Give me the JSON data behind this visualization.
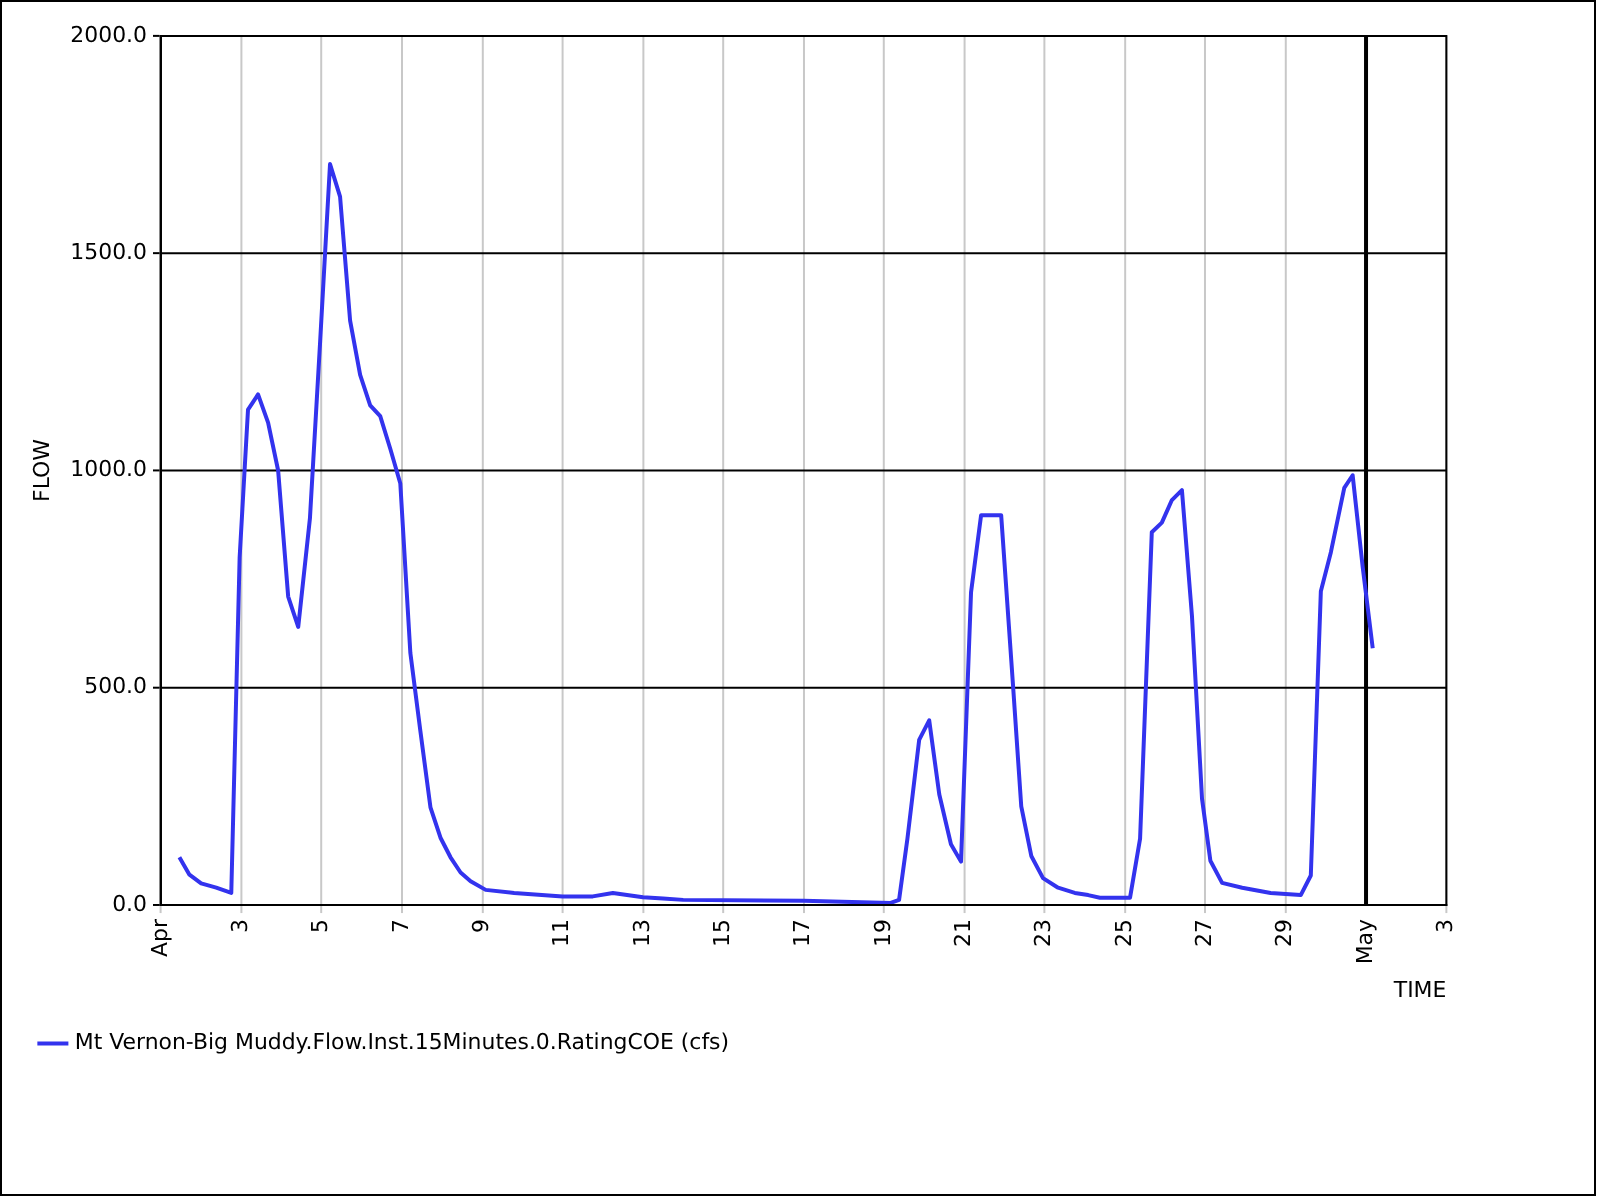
{
  "chart_data": {
    "type": "line",
    "xlabel": "TIME",
    "ylabel": "FLOW",
    "x": [
      "--04-01T11:00",
      "--04-01T17:00",
      "--04-02T00:00",
      "--04-02T09:00",
      "--04-02T18:00",
      "--04-02T23:00",
      "--04-03T04:00",
      "--04-03T10:00",
      "--04-03T16:00",
      "--04-03T22:00",
      "--04-04T04:00",
      "--04-04T10:00",
      "--04-04T17:00",
      "--04-04T23:00",
      "--04-05T05:00",
      "--04-05T11:00",
      "--04-05T17:00",
      "--04-05T23:00",
      "--04-06T05:00",
      "--04-06T11:00",
      "--04-06T17:00",
      "--04-06T23:00",
      "--04-07T05:00",
      "--04-07T11:00",
      "--04-07T17:00",
      "--04-07T23:00",
      "--04-08T05:00",
      "--04-08T11:00",
      "--04-08T17:00",
      "--04-09T02:00",
      "--04-09T19:00",
      "--04-11T00:00",
      "--04-11T18:00",
      "--04-12T06:00",
      "--04-13T00:00",
      "--04-13T12:00",
      "--04-14T00:00",
      "--04-17T00:00",
      "--04-19T04:00",
      "--04-19T09:00",
      "--04-19T14:00",
      "--04-19T21:00",
      "--04-20T03:00",
      "--04-20T09:00",
      "--04-20T16:00",
      "--04-20T22:00",
      "--04-21T04:00",
      "--04-21T10:00",
      "--04-21T22:00",
      "--04-22T05:00",
      "--04-22T10:00",
      "--04-22T16:00",
      "--04-22T23:00",
      "--04-23T08:00",
      "--04-23T18:00",
      "--04-24T02:00",
      "--04-24T09:00",
      "--04-25T03:00",
      "--04-25T09:00",
      "--04-25T16:00",
      "--04-25T22:00",
      "--04-26T04:00",
      "--04-26T10:00",
      "--04-26T16:00",
      "--04-26T22:00",
      "--04-27T03:00",
      "--04-27T10:00",
      "--04-27T22:00",
      "--04-28T15:00",
      "--04-29T09:00",
      "--04-29T15:00",
      "--04-29T21:00",
      "--04-30T03:00",
      "--04-30T11:00",
      "--04-30T16:00",
      "--04-30T22:00",
      "--05-01T04:00"
    ],
    "series": [
      {
        "name": "Mt Vernon-Big Muddy.Flow.Inst.15Minutes.0.RatingCOE (cfs)",
        "color": "#3333ee",
        "values": [
          110,
          70,
          50,
          40,
          28,
          800,
          1140,
          1175,
          1110,
          1000,
          710,
          640,
          890,
          1290,
          1705,
          1630,
          1345,
          1220,
          1150,
          1125,
          1050,
          970,
          580,
          400,
          225,
          155,
          110,
          75,
          55,
          35,
          28,
          20,
          20,
          28,
          18,
          15,
          12,
          10,
          5,
          12,
          153,
          380,
          425,
          255,
          140,
          100,
          720,
          897,
          897,
          510,
          227,
          113,
          62,
          40,
          28,
          23,
          17,
          17,
          153,
          858,
          880,
          932,
          955,
          665,
          245,
          102,
          51,
          40,
          28,
          23,
          68,
          722,
          812,
          960,
          989,
          778,
          591
        ]
      }
    ],
    "xlim": [
      "--04-01",
      "--05-03"
    ],
    "xticks": [
      {
        "value": "--04-01",
        "label": "Apr"
      },
      {
        "value": "--04-03",
        "label": "3"
      },
      {
        "value": "--04-05",
        "label": "5"
      },
      {
        "value": "--04-07",
        "label": "7"
      },
      {
        "value": "--04-09",
        "label": "9"
      },
      {
        "value": "--04-11",
        "label": "11"
      },
      {
        "value": "--04-13",
        "label": "13"
      },
      {
        "value": "--04-15",
        "label": "15"
      },
      {
        "value": "--04-17",
        "label": "17"
      },
      {
        "value": "--04-19",
        "label": "19"
      },
      {
        "value": "--04-21",
        "label": "21"
      },
      {
        "value": "--04-23",
        "label": "23"
      },
      {
        "value": "--04-25",
        "label": "25"
      },
      {
        "value": "--04-27",
        "label": "27"
      },
      {
        "value": "--04-29",
        "label": "29"
      },
      {
        "value": "--05-01",
        "label": "May"
      },
      {
        "value": "--05-03",
        "label": "3"
      }
    ],
    "ylim": [
      0,
      2000
    ],
    "yticks": [
      {
        "value": 0,
        "label": "0.0"
      },
      {
        "value": 500,
        "label": "500.0"
      },
      {
        "value": 1000,
        "label": "1000.0"
      },
      {
        "value": 1500,
        "label": "1500.0"
      },
      {
        "value": 2000,
        "label": "2000.0"
      }
    ],
    "ref_lines": [
      {
        "axis": "x",
        "value": "--05-01",
        "color": "#000000"
      }
    ],
    "grid": true,
    "legend": "bottom left",
    "marker": "none",
    "line_style": "solid"
  }
}
